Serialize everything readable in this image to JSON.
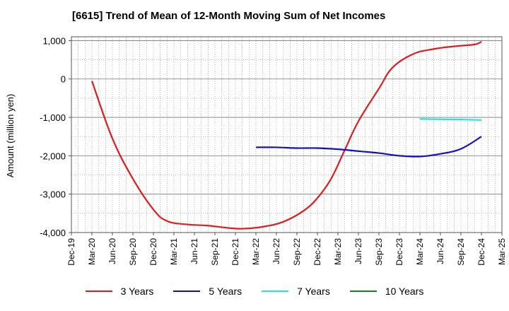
{
  "chart_data": {
    "type": "line",
    "title": "[6615]  Trend of Mean of 12-Month Moving Sum of Net Incomes",
    "xlabel": "",
    "ylabel": "Amount (million yen)",
    "ylim": [
      -4000,
      1100
    ],
    "yticks": [
      1000,
      0,
      -1000,
      -2000,
      -3000,
      -4000
    ],
    "ytick_labels": [
      "1,000",
      "0",
      "-1,000",
      "-2,000",
      "-3,000",
      "-4,000"
    ],
    "x_range": [
      "2019-12",
      "2025-03"
    ],
    "x_ticks": [
      "Dec-19",
      "Mar-20",
      "Jun-20",
      "Sep-20",
      "Dec-20",
      "Mar-21",
      "Jun-21",
      "Sep-21",
      "Dec-21",
      "Mar-22",
      "Jun-22",
      "Sep-22",
      "Dec-22",
      "Mar-23",
      "Jun-23",
      "Sep-23",
      "Dec-23",
      "Mar-24",
      "Jun-24",
      "Sep-24",
      "Dec-24",
      "Mar-25"
    ],
    "grid": true,
    "legend_position": "bottom",
    "series": [
      {
        "name": "3 Years",
        "color": "#e31a1c",
        "points": [
          [
            "2020-03",
            -50
          ],
          [
            "2020-06",
            -1550
          ],
          [
            "2020-09",
            -2600
          ],
          [
            "2020-12",
            -3400
          ],
          [
            "2021-02",
            -3700
          ],
          [
            "2021-05",
            -3790
          ],
          [
            "2021-08",
            -3820
          ],
          [
            "2021-11",
            -3880
          ],
          [
            "2022-01",
            -3900
          ],
          [
            "2022-04",
            -3850
          ],
          [
            "2022-07",
            -3720
          ],
          [
            "2022-10",
            -3430
          ],
          [
            "2022-12",
            -3100
          ],
          [
            "2023-02",
            -2600
          ],
          [
            "2023-04",
            -1850
          ],
          [
            "2023-06",
            -1100
          ],
          [
            "2023-09",
            -250
          ],
          [
            "2023-11",
            300
          ],
          [
            "2024-02",
            650
          ],
          [
            "2024-05",
            780
          ],
          [
            "2024-08",
            850
          ],
          [
            "2024-11",
            900
          ],
          [
            "2024-12",
            970
          ]
        ]
      },
      {
        "name": "5 Years",
        "color": "#1010cc",
        "points": [
          [
            "2022-03",
            -1780
          ],
          [
            "2022-06",
            -1780
          ],
          [
            "2022-09",
            -1800
          ],
          [
            "2022-12",
            -1800
          ],
          [
            "2023-03",
            -1830
          ],
          [
            "2023-06",
            -1880
          ],
          [
            "2023-09",
            -1930
          ],
          [
            "2023-12",
            -2000
          ],
          [
            "2024-03",
            -2020
          ],
          [
            "2024-06",
            -1950
          ],
          [
            "2024-09",
            -1820
          ],
          [
            "2024-12",
            -1500
          ]
        ]
      },
      {
        "name": "7 Years",
        "color": "#22e5e5",
        "points": [
          [
            "2024-03",
            -1040
          ],
          [
            "2024-06",
            -1050
          ],
          [
            "2024-09",
            -1055
          ],
          [
            "2024-12",
            -1070
          ]
        ]
      },
      {
        "name": "10 Years",
        "color": "#118811",
        "points": []
      }
    ]
  }
}
